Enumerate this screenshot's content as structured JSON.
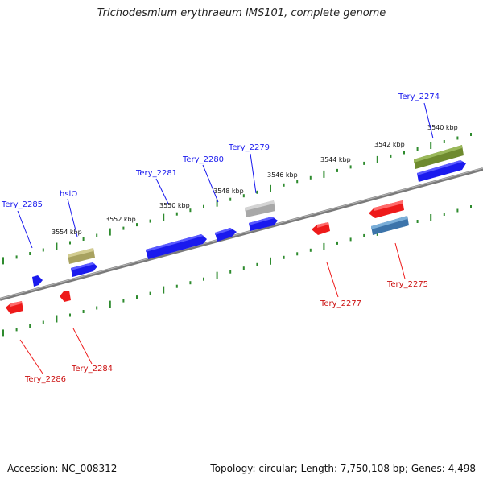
{
  "title": "Trichodesmium erythraeum IMS101, complete genome",
  "accession_text": "Accession: NC_008312",
  "summary_text": "Topology: circular; Length: 7,750,108 bp; Genes: 4,498",
  "colors": {
    "forward": "#1a1aee",
    "reverse": "#ee1a1a",
    "backbone": "#808080",
    "tick": "#2e8b2e",
    "hslO": "#b0aa6a",
    "tery_2279": "#b4b4b4",
    "tery_2274": "#6e8a2e",
    "tery_2275": "#4a82b8"
  },
  "ruler_ticks": [
    {
      "label": "3540 kbp"
    },
    {
      "label": "3542 kbp"
    },
    {
      "label": "3544 kbp"
    },
    {
      "label": "3546 kbp"
    },
    {
      "label": "3548 kbp"
    },
    {
      "label": "3550 kbp"
    },
    {
      "label": "3552 kbp"
    },
    {
      "label": "3554 kbp"
    }
  ],
  "gene_labels": {
    "tery_2274": "Tery_2274",
    "tery_2275": "Tery_2275",
    "tery_2277": "Tery_2277",
    "tery_2279": "Tery_2279",
    "tery_2280": "Tery_2280",
    "tery_2281": "Tery_2281",
    "hslO": "hslO",
    "tery_2284": "Tery_2284",
    "tery_2285": "Tery_2285",
    "tery_2286": "Tery_2286"
  }
}
